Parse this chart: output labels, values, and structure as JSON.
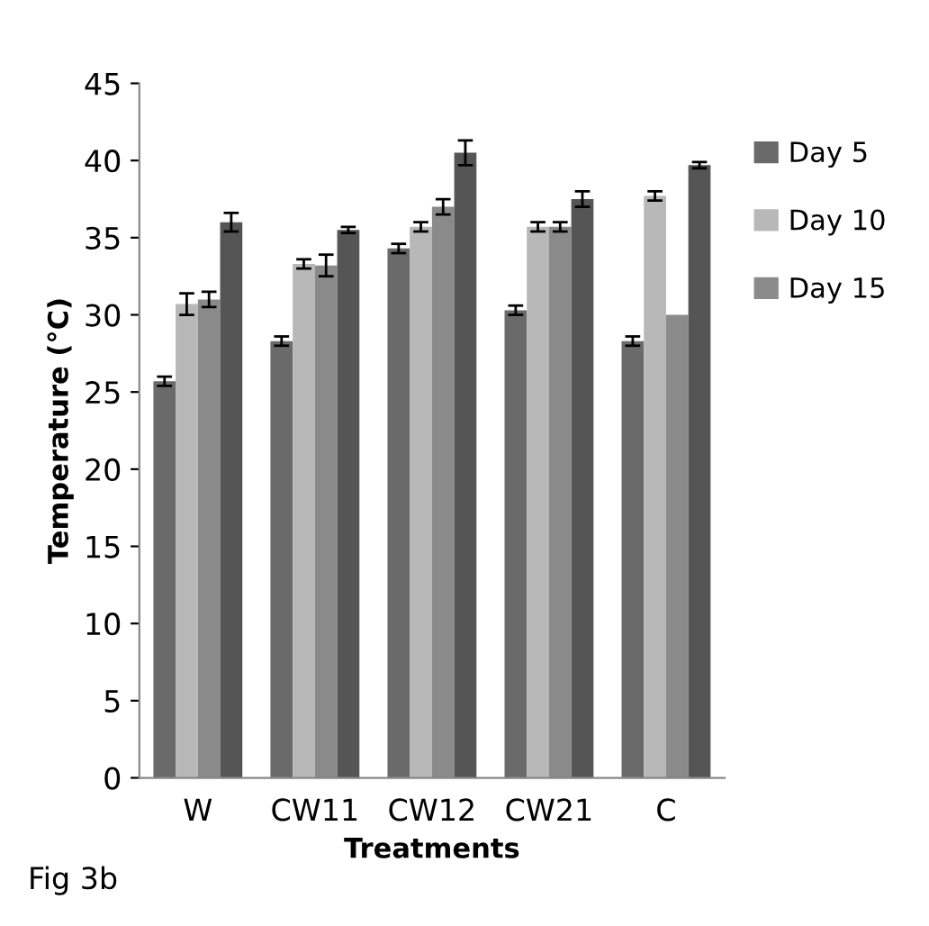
{
  "chart_data": {
    "type": "bar",
    "xlabel": "Treatments",
    "ylabel": "Temperature (°C)",
    "categories": [
      "W",
      "CW11",
      "CW12",
      "CW21",
      "C"
    ],
    "series": [
      {
        "name": "Day 5",
        "color": "#6a6a6a",
        "values": [
          25.7,
          28.3,
          34.3,
          30.3,
          28.3
        ],
        "errors": [
          0.3,
          0.3,
          0.3,
          0.3,
          0.3
        ]
      },
      {
        "name": "Day 10",
        "color": "#b8b8b8",
        "values": [
          30.7,
          33.3,
          35.7,
          35.7,
          37.7
        ],
        "errors": [
          0.7,
          0.3,
          0.3,
          0.3,
          0.3
        ]
      },
      {
        "name": "Day 15",
        "color": "#8a8a8a",
        "values": [
          31.0,
          33.2,
          37.0,
          35.7,
          30.0
        ],
        "errors": [
          0.5,
          0.7,
          0.5,
          0.3,
          null
        ]
      },
      {
        "color": "#555555",
        "values": [
          36.0,
          35.5,
          40.5,
          37.5,
          39.7
        ],
        "errors": [
          0.6,
          0.2,
          0.8,
          0.5,
          0.2
        ]
      }
    ],
    "ylim": [
      0,
      45
    ],
    "yticks": [
      0,
      5,
      10,
      15,
      20,
      25,
      30,
      35,
      40,
      45
    ],
    "grid": false,
    "legend": "right",
    "annotations": [
      "Fig 3b"
    ]
  }
}
